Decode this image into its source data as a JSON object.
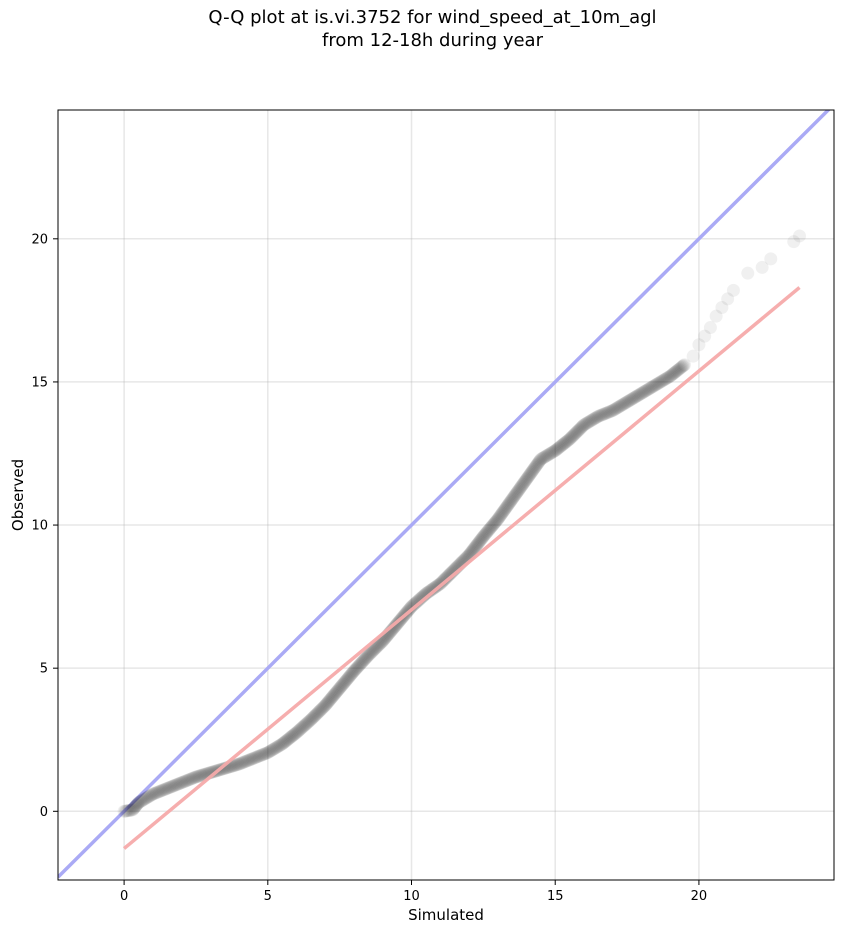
{
  "chart_data": {
    "type": "scatter",
    "title_lines": [
      "Q-Q plot at is.vi.3752 for wind_speed_at_10m_agl",
      "from 12-18h during year"
    ],
    "xlabel": "Simulated",
    "ylabel": "Observed",
    "xlim": [
      -2.3,
      24.7
    ],
    "ylim": [
      -2.4,
      24.5
    ],
    "x_ticks": [
      0,
      5,
      10,
      15,
      20
    ],
    "y_ticks": [
      0,
      5,
      10,
      15,
      20
    ],
    "grid": true,
    "colors": {
      "points": "#000000",
      "identity_line": "#aaaaf5",
      "fit_line": "#f5aaaa"
    },
    "identity_line": {
      "x": [
        -2.3,
        24.7
      ],
      "y": [
        -2.3,
        24.7
      ]
    },
    "fit_line": {
      "x": [
        0.0,
        23.5
      ],
      "y": [
        -1.3,
        18.3
      ]
    },
    "quantiles": {
      "x": [
        0.0,
        0.3,
        0.5,
        1.0,
        1.5,
        2.0,
        2.5,
        3.0,
        3.5,
        4.0,
        4.5,
        5.0,
        5.5,
        6.0,
        6.5,
        7.0,
        7.5,
        8.0,
        8.5,
        9.0,
        9.5,
        10.0,
        10.5,
        11.0,
        11.5,
        12.0,
        12.5,
        13.0,
        13.5,
        14.0,
        14.5,
        15.0,
        15.5,
        16.0,
        16.5,
        17.0,
        17.5,
        18.0,
        18.5,
        19.0,
        19.5,
        19.8,
        20.0,
        20.2,
        20.4,
        20.6,
        20.8,
        21.0,
        21.2,
        21.7,
        22.2,
        22.5,
        23.3,
        23.5
      ],
      "y": [
        0.0,
        0.05,
        0.3,
        0.6,
        0.8,
        1.0,
        1.2,
        1.35,
        1.5,
        1.65,
        1.85,
        2.05,
        2.35,
        2.75,
        3.2,
        3.7,
        4.3,
        4.9,
        5.45,
        5.95,
        6.55,
        7.15,
        7.6,
        7.95,
        8.45,
        8.95,
        9.6,
        10.2,
        10.9,
        11.6,
        12.3,
        12.6,
        13.0,
        13.5,
        13.8,
        14.0,
        14.3,
        14.6,
        14.9,
        15.2,
        15.6,
        15.9,
        16.3,
        16.6,
        16.9,
        17.3,
        17.6,
        17.9,
        18.2,
        18.8,
        19.0,
        19.3,
        19.9,
        20.1
      ]
    }
  }
}
